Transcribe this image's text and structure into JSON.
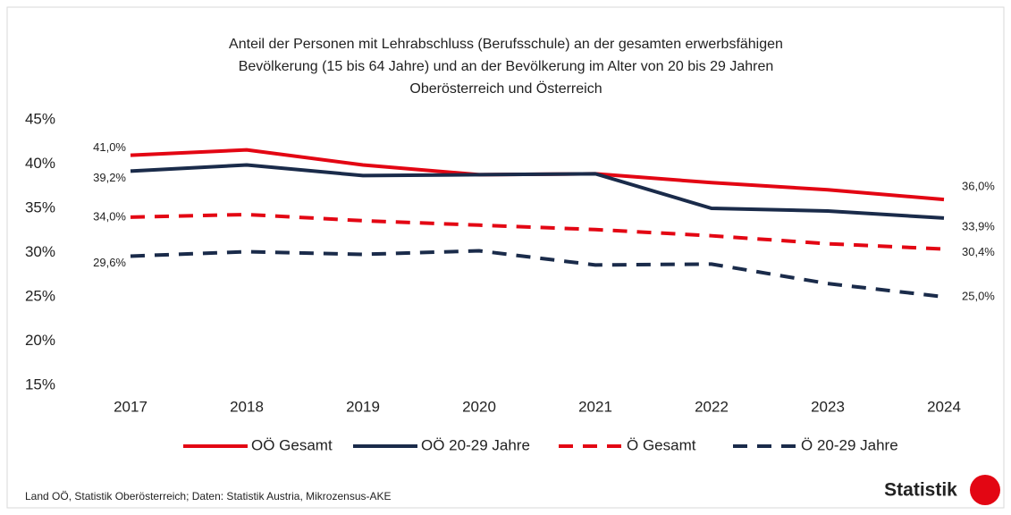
{
  "chart_data": {
    "type": "line",
    "title": [
      "Anteil der Personen mit Lehrabschluss (Berufsschule) an der gesamten erwerbsfähigen",
      "Bevölkerung (15 bis 64 Jahre) und an der Bevölkerung im Alter von 20 bis 29 Jahren",
      "Oberösterreich und Österreich"
    ],
    "categories": [
      "2017",
      "2018",
      "2019",
      "2020",
      "2021",
      "2022",
      "2023",
      "2024"
    ],
    "series": [
      {
        "name": "OÖ Gesamt",
        "color": "#e30613",
        "dash": false,
        "values": [
          41.0,
          41.6,
          39.9,
          38.8,
          38.9,
          37.9,
          37.1,
          36.0
        ],
        "value_labels": [
          "41,0%",
          null,
          null,
          null,
          null,
          null,
          null,
          "36,0%"
        ]
      },
      {
        "name": "OÖ 20-29 Jahre",
        "color": "#1a2b4a",
        "dash": false,
        "values": [
          39.2,
          39.9,
          38.7,
          38.8,
          38.9,
          35.0,
          34.7,
          33.9
        ],
        "value_labels": [
          "39,2%",
          null,
          null,
          null,
          null,
          null,
          null,
          "33,9%"
        ]
      },
      {
        "name": "Ö Gesamt",
        "color": "#e30613",
        "dash": true,
        "values": [
          34.0,
          34.3,
          33.6,
          33.1,
          32.6,
          31.9,
          31.0,
          30.4
        ],
        "value_labels": [
          "34,0%",
          null,
          null,
          null,
          null,
          null,
          null,
          "30,4%"
        ]
      },
      {
        "name": "Ö 20-29 Jahre",
        "color": "#1a2b4a",
        "dash": true,
        "values": [
          29.6,
          30.1,
          29.8,
          30.2,
          28.6,
          28.7,
          26.5,
          25.0
        ],
        "value_labels": [
          "29,6%",
          null,
          null,
          null,
          null,
          null,
          null,
          "25,0%"
        ]
      }
    ],
    "ylim": [
      15,
      45
    ],
    "yticks": [
      {
        "value": 15,
        "label": "15%"
      },
      {
        "value": 20,
        "label": "20%"
      },
      {
        "value": 25,
        "label": "25%"
      },
      {
        "value": 30,
        "label": "30%"
      },
      {
        "value": 35,
        "label": "35%"
      },
      {
        "value": 40,
        "label": "40%"
      },
      {
        "value": 45,
        "label": "45%"
      }
    ],
    "grid": false,
    "legend": "bottom",
    "source": "Land OÖ, Statistik Oberösterreich; Daten: Statistik Austria, Mikrozensus-AKE",
    "logo": "Statistik"
  }
}
